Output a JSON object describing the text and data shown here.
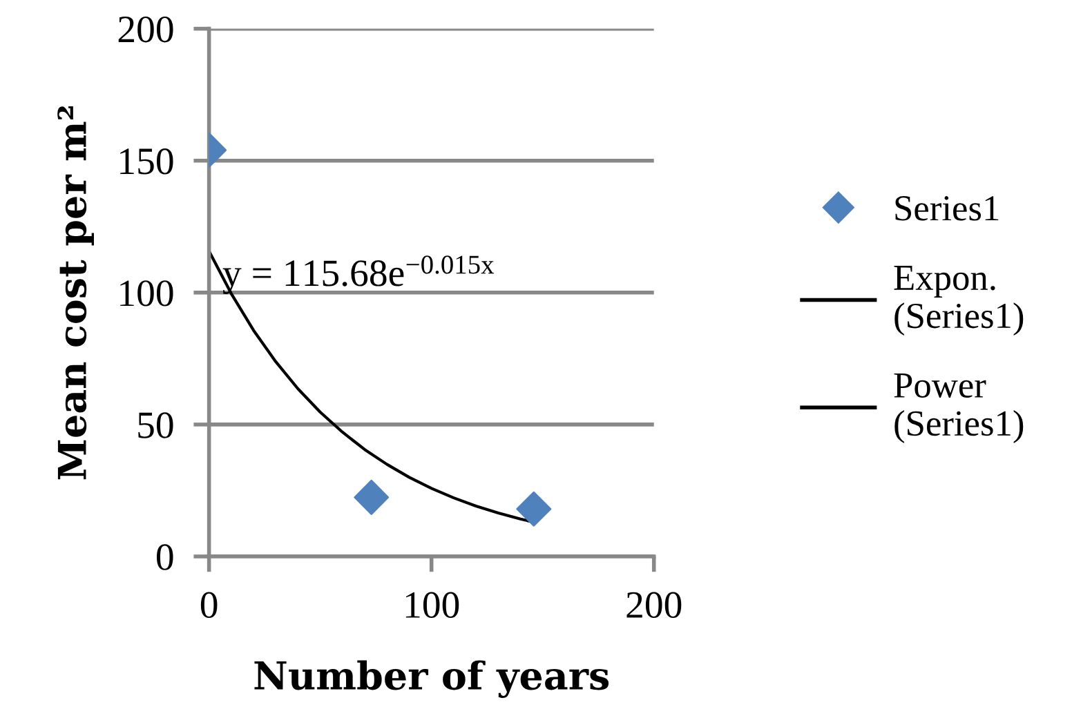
{
  "chart_data": {
    "type": "scatter",
    "xlabel": "Number of years",
    "ylabel": "Mean cost per m²",
    "xlim": [
      0,
      200
    ],
    "xticks": [
      0,
      100,
      200
    ],
    "ylim": [
      0,
      200
    ],
    "yticks": [
      0,
      50,
      100,
      150,
      200
    ],
    "grid": "y",
    "legend": "right",
    "marker": "diamond",
    "series": [
      {
        "name": "Series1",
        "color": "#4f81bd",
        "x": [
          0,
          73,
          146
        ],
        "values": [
          154,
          22.4,
          18
        ]
      },
      {
        "name": "Expon.\n(Series1)",
        "color": "#000000",
        "type": "line",
        "marker": "none",
        "x": [
          0,
          10,
          20,
          30,
          40,
          50,
          60,
          70,
          80,
          90,
          100,
          110,
          120,
          130,
          140,
          146
        ],
        "values": [
          115.7,
          99.6,
          85.7,
          73.8,
          63.5,
          54.7,
          47.1,
          40.5,
          34.9,
          30.0,
          25.8,
          22.2,
          19.1,
          16.5,
          14.2,
          13.0
        ]
      },
      {
        "name": "Power\n(Series1)",
        "color": "#000000",
        "type": "line",
        "marker": "none"
      }
    ],
    "annotations": [
      "y = 115.68e$^{−0.015x}$"
    ]
  }
}
